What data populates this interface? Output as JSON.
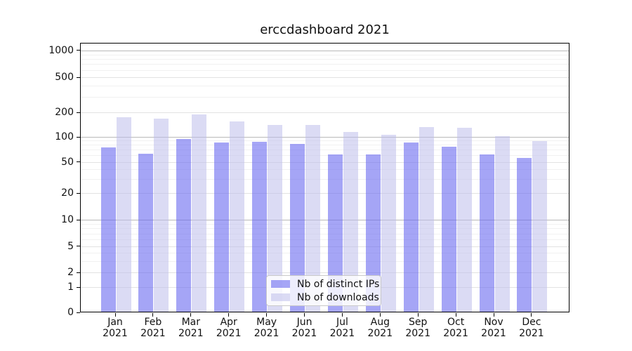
{
  "figure": {
    "title": "erccdashboard 2021"
  },
  "chart_data": {
    "type": "bar",
    "title": "erccdashboard 2021",
    "categories": [
      "Jan",
      "Feb",
      "Mar",
      "Apr",
      "May",
      "Jun",
      "Jul",
      "Aug",
      "Sep",
      "Oct",
      "Nov",
      "Dec"
    ],
    "year": "2021",
    "series": [
      {
        "name": "Nb of distinct IPs",
        "color": "rgba(100,100,240,0.58)",
        "values": [
          74,
          62,
          92,
          84,
          86,
          81,
          60,
          60,
          84,
          75,
          60,
          55
        ]
      },
      {
        "name": "Nb of downloads",
        "color": "rgba(190,190,235,0.55)",
        "values": [
          170,
          164,
          185,
          151,
          136,
          137,
          112,
          105,
          130,
          126,
          101,
          87
        ]
      }
    ],
    "yscale": "symlog",
    "yticks": [
      0,
      1,
      2,
      5,
      10,
      20,
      50,
      100,
      200,
      500,
      1000
    ],
    "ylim": [
      0,
      1200
    ],
    "xlabel": "",
    "ylabel": "",
    "grid": "horizontal major and minor gridlines",
    "legend_position": "lower center inside plot",
    "grid_colors": {
      "major_pow10": "#b9b9b9",
      "major_other": "#e2e2e2",
      "minor": "#f1f1f1"
    }
  }
}
